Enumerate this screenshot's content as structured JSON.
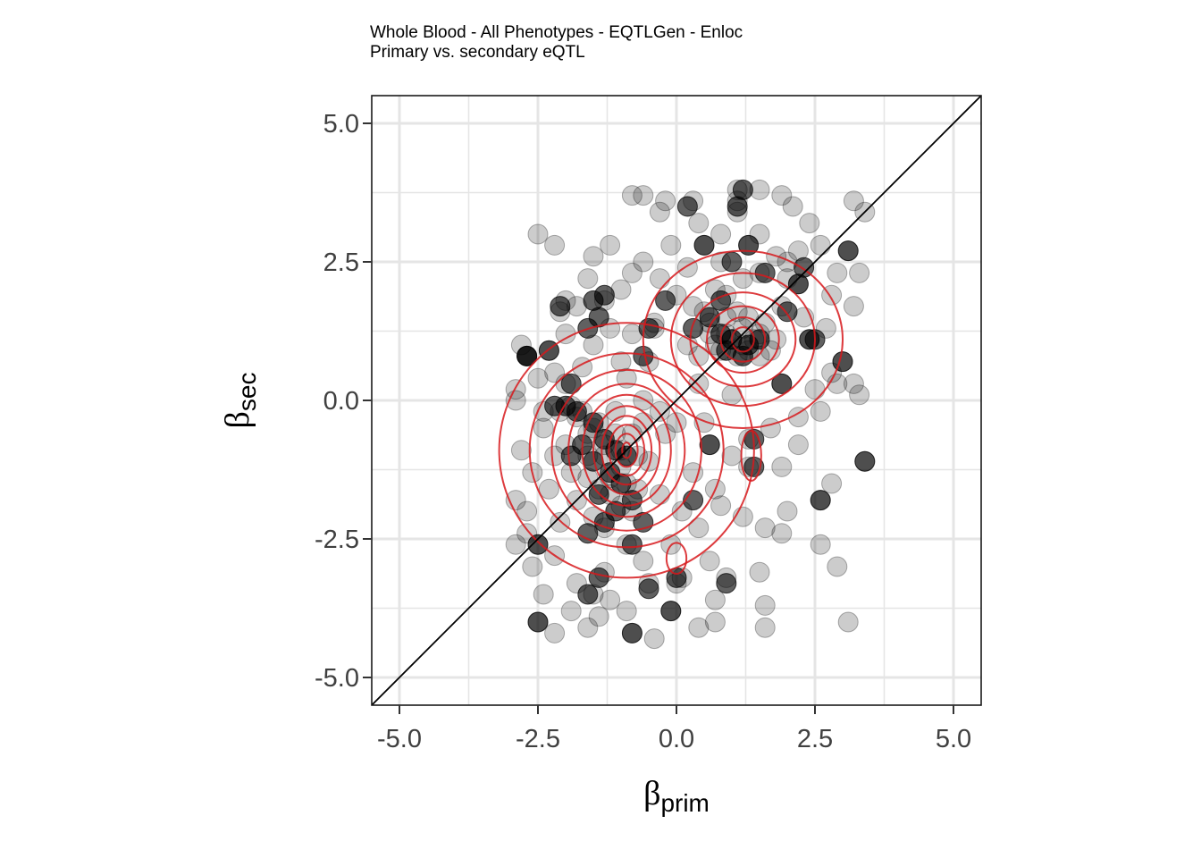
{
  "title": "Whole Blood - All Phenotypes - EQTLGen - Enloc",
  "subtitle": "Primary vs. secondary eQTL",
  "colors": {
    "point": "#000000",
    "contour": "#d7191c",
    "grid": "#e5e5e5",
    "diagonal": "#000000"
  },
  "chart_data": {
    "type": "scatter",
    "title": "Whole Blood - All Phenotypes - EQTLGen - Enloc",
    "subtitle": "Primary vs. secondary eQTL",
    "xlabel": {
      "symbol": "β",
      "sub": "prim"
    },
    "ylabel": {
      "symbol": "β",
      "sub": "sec"
    },
    "xlim": [
      -5.5,
      5.5
    ],
    "ylim": [
      -5.5,
      5.5
    ],
    "xticks": [
      "-5.0",
      "-2.5",
      "0.0",
      "2.5",
      "5.0"
    ],
    "yticks": [
      "-5.0",
      "-2.5",
      "0.0",
      "2.5",
      "5.0"
    ],
    "grid": true,
    "diagonal": "y = x",
    "density_contours": true,
    "points": [
      [
        -2.5,
        3.0
      ],
      [
        -2.2,
        2.8
      ],
      [
        -1.5,
        2.6
      ],
      [
        -1.2,
        2.8
      ],
      [
        -0.8,
        3.7
      ],
      [
        -0.6,
        3.7
      ],
      [
        -0.2,
        3.6
      ],
      [
        0.3,
        3.6
      ],
      [
        1.1,
        3.8
      ],
      [
        1.1,
        3.6
      ],
      [
        1.1,
        3.4
      ],
      [
        1.5,
        3.8
      ],
      [
        1.9,
        3.7
      ],
      [
        2.1,
        3.5
      ],
      [
        3.2,
        3.6
      ],
      [
        3.4,
        3.4
      ],
      [
        3.1,
        2.7
      ],
      [
        3.3,
        2.3
      ],
      [
        2.2,
        2.7
      ],
      [
        2.0,
        2.5
      ],
      [
        0.5,
        2.8
      ],
      [
        1.3,
        2.8
      ],
      [
        -2.0,
        1.8
      ],
      [
        -2.1,
        1.6
      ],
      [
        -1.8,
        1.7
      ],
      [
        -1.3,
        1.8
      ],
      [
        -1.0,
        2.0
      ],
      [
        -0.8,
        2.3
      ],
      [
        -0.3,
        2.2
      ],
      [
        0.2,
        2.4
      ],
      [
        0.8,
        2.5
      ],
      [
        1.5,
        2.3
      ],
      [
        2.2,
        2.1
      ],
      [
        2.8,
        1.9
      ],
      [
        3.2,
        1.7
      ],
      [
        -2.3,
        0.9
      ],
      [
        -2.7,
        0.8
      ],
      [
        -2.2,
        0.5
      ],
      [
        -2.9,
        0.2
      ],
      [
        -1.5,
        1.0
      ],
      [
        -0.5,
        0.7
      ],
      [
        -0.8,
        1.2
      ],
      [
        -0.4,
        1.3
      ],
      [
        0.2,
        1.0
      ],
      [
        0.6,
        1.4
      ],
      [
        0.9,
        1.2
      ],
      [
        1.2,
        1.0
      ],
      [
        1.5,
        0.8
      ],
      [
        1.8,
        1.1
      ],
      [
        2.4,
        1.1
      ],
      [
        3.0,
        0.7
      ],
      [
        3.2,
        0.3
      ],
      [
        2.8,
        0.5
      ],
      [
        2.6,
        -0.2
      ],
      [
        1.9,
        0.3
      ],
      [
        1.0,
        0.1
      ],
      [
        0.4,
        0.3
      ],
      [
        0.5,
        -0.4
      ],
      [
        0.0,
        -0.4
      ],
      [
        -0.6,
        0.0
      ],
      [
        -1.1,
        -0.2
      ],
      [
        -1.5,
        -0.5
      ],
      [
        -1.8,
        -0.3
      ],
      [
        -2.1,
        -0.2
      ],
      [
        -2.4,
        -0.5
      ],
      [
        -2.8,
        -0.9
      ],
      [
        -2.6,
        -1.3
      ],
      [
        -2.2,
        -1.0
      ],
      [
        -1.9,
        -1.3
      ],
      [
        -1.6,
        -1.0
      ],
      [
        -1.3,
        -0.8
      ],
      [
        -1.0,
        -0.9
      ],
      [
        -0.8,
        -0.6
      ],
      [
        -0.5,
        -1.1
      ],
      [
        -0.2,
        -0.6
      ],
      [
        0.6,
        -0.8
      ],
      [
        1.3,
        -0.7
      ],
      [
        1.3,
        -1.2
      ],
      [
        1.9,
        -1.2
      ],
      [
        2.6,
        -1.8
      ],
      [
        2.8,
        -1.5
      ],
      [
        3.4,
        -1.1
      ],
      [
        -2.9,
        -1.8
      ],
      [
        -2.7,
        -2.4
      ],
      [
        -2.5,
        -2.6
      ],
      [
        -2.1,
        -2.2
      ],
      [
        -1.8,
        -1.8
      ],
      [
        -1.5,
        -2.1
      ],
      [
        -1.3,
        -2.3
      ],
      [
        -1.0,
        -1.9
      ],
      [
        -0.7,
        -1.6
      ],
      [
        -0.3,
        -1.7
      ],
      [
        0.1,
        -2.0
      ],
      [
        0.4,
        -2.3
      ],
      [
        0.8,
        -1.9
      ],
      [
        1.2,
        -2.1
      ],
      [
        1.6,
        -2.3
      ],
      [
        1.9,
        -2.4
      ],
      [
        2.6,
        -2.6
      ],
      [
        2.9,
        -3.0
      ],
      [
        -2.6,
        -3.0
      ],
      [
        -2.2,
        -2.8
      ],
      [
        -1.8,
        -3.3
      ],
      [
        -1.5,
        -3.5
      ],
      [
        -1.3,
        -3.1
      ],
      [
        -0.9,
        -2.6
      ],
      [
        -0.5,
        -3.3
      ],
      [
        0.1,
        -3.2
      ],
      [
        0.6,
        -2.9
      ],
      [
        0.9,
        -3.2
      ],
      [
        1.5,
        -3.1
      ],
      [
        0.7,
        -3.6
      ],
      [
        1.6,
        -3.7
      ],
      [
        1.6,
        -4.1
      ],
      [
        -0.8,
        -4.2
      ],
      [
        -0.4,
        -4.3
      ],
      [
        -0.1,
        -3.8
      ],
      [
        0.7,
        -4.0
      ],
      [
        -2.5,
        -4.0
      ],
      [
        -2.2,
        -4.2
      ],
      [
        -1.6,
        -4.1
      ],
      [
        3.1,
        -4.0
      ],
      [
        -1.2,
        -3.6
      ],
      [
        -0.9,
        -3.8
      ],
      [
        -2.0,
        0.3
      ],
      [
        -1.7,
        0.6
      ],
      [
        -1.2,
        1.3
      ],
      [
        -1.0,
        0.7
      ],
      [
        0.0,
        1.9
      ],
      [
        0.3,
        1.7
      ],
      [
        0.5,
        1.6
      ],
      [
        0.9,
        1.9
      ],
      [
        1.3,
        1.5
      ],
      [
        1.6,
        1.4
      ],
      [
        1.9,
        1.7
      ],
      [
        2.3,
        1.5
      ],
      [
        2.7,
        1.3
      ],
      [
        2.9,
        2.3
      ],
      [
        0.3,
        -1.3
      ],
      [
        0.7,
        -1.6
      ],
      [
        1.0,
        -1.0
      ],
      [
        -2.9,
        0.0
      ],
      [
        -2.4,
        -0.2
      ],
      [
        -2.7,
        -2.0
      ],
      [
        -2.0,
        -0.8
      ],
      [
        -1.9,
        -0.1
      ],
      [
        -1.7,
        -0.2
      ],
      [
        -1.6,
        -0.6
      ],
      [
        -1.4,
        -0.4
      ],
      [
        -1.3,
        -1.0
      ],
      [
        -1.2,
        -1.4
      ],
      [
        -1.1,
        -0.6
      ],
      [
        -1.0,
        -1.2
      ],
      [
        -0.9,
        -1.5
      ],
      [
        -0.7,
        -1.0
      ],
      [
        -0.6,
        -0.4
      ],
      [
        -1.4,
        -1.6
      ],
      [
        -1.6,
        -1.4
      ],
      [
        -1.2,
        -1.7
      ],
      [
        -0.8,
        -2.0
      ],
      [
        0.7,
        1.0
      ],
      [
        0.8,
        0.9
      ],
      [
        1.0,
        1.1
      ],
      [
        1.1,
        0.8
      ],
      [
        1.2,
        1.3
      ],
      [
        1.4,
        1.1
      ],
      [
        1.5,
        1.2
      ],
      [
        1.3,
        0.9
      ],
      [
        0.9,
        1.5
      ],
      [
        0.6,
        1.2
      ],
      [
        1.7,
        0.9
      ],
      [
        1.1,
        1.6
      ],
      [
        0.4,
        0.8
      ],
      [
        -0.4,
        1.4
      ],
      [
        2.0,
        2.2
      ],
      [
        -0.3,
        3.4
      ],
      [
        0.4,
        3.2
      ],
      [
        0.8,
        3.0
      ],
      [
        1.5,
        3.0
      ],
      [
        2.4,
        3.2
      ],
      [
        2.6,
        2.8
      ],
      [
        1.8,
        2.6
      ],
      [
        1.2,
        2.2
      ],
      [
        0.7,
        2.0
      ],
      [
        -0.1,
        2.8
      ],
      [
        -0.6,
        2.5
      ],
      [
        -1.6,
        2.2
      ],
      [
        -2.0,
        1.2
      ],
      [
        -2.8,
        1.0
      ],
      [
        -2.5,
        0.4
      ],
      [
        -0.9,
        0.4
      ],
      [
        -0.3,
        -0.2
      ],
      [
        2.2,
        -0.3
      ],
      [
        2.5,
        0.2
      ],
      [
        2.9,
        0.3
      ],
      [
        3.3,
        0.1
      ],
      [
        2.2,
        -0.8
      ],
      [
        1.7,
        -0.5
      ],
      [
        2.0,
        -2.0
      ],
      [
        -0.1,
        -2.6
      ],
      [
        -0.6,
        -2.9
      ],
      [
        -2.4,
        -3.5
      ],
      [
        -1.9,
        -3.8
      ],
      [
        -1.4,
        -3.9
      ],
      [
        0.4,
        -4.1
      ],
      [
        -2.9,
        -2.6
      ],
      [
        0.0,
        -3.3
      ],
      [
        -2.3,
        -1.6
      ]
    ],
    "dense_points": [
      [
        1.2,
        3.8
      ],
      [
        1.1,
        3.5
      ],
      [
        0.2,
        3.5
      ],
      [
        0.5,
        2.8
      ],
      [
        3.1,
        2.7
      ],
      [
        2.3,
        2.4
      ],
      [
        2.2,
        2.1
      ],
      [
        1.6,
        2.3
      ],
      [
        1.0,
        2.5
      ],
      [
        -2.1,
        1.7
      ],
      [
        -1.5,
        1.8
      ],
      [
        -1.3,
        1.9
      ],
      [
        -2.7,
        0.8
      ],
      [
        -2.3,
        0.9
      ],
      [
        -1.6,
        1.3
      ],
      [
        -1.4,
        1.5
      ],
      [
        -0.5,
        1.3
      ],
      [
        -0.2,
        1.8
      ],
      [
        0.3,
        1.3
      ],
      [
        0.6,
        1.5
      ],
      [
        0.8,
        1.2
      ],
      [
        1.0,
        1.1
      ],
      [
        1.3,
        1.0
      ],
      [
        1.5,
        1.1
      ],
      [
        1.2,
        0.8
      ],
      [
        0.9,
        0.9
      ],
      [
        2.4,
        1.1
      ],
      [
        3.0,
        0.7
      ],
      [
        1.9,
        0.3
      ],
      [
        -2.0,
        -0.1
      ],
      [
        -1.8,
        -0.2
      ],
      [
        -1.5,
        -0.4
      ],
      [
        -1.3,
        -0.7
      ],
      [
        -1.1,
        -0.9
      ],
      [
        -0.9,
        -1.0
      ],
      [
        -1.7,
        -0.8
      ],
      [
        -1.5,
        -1.1
      ],
      [
        -1.2,
        -1.3
      ],
      [
        -1.0,
        -1.5
      ],
      [
        -1.4,
        -1.7
      ],
      [
        -1.1,
        -2.0
      ],
      [
        -1.3,
        -2.2
      ],
      [
        -1.6,
        -2.4
      ],
      [
        -0.8,
        -1.8
      ],
      [
        -0.6,
        -2.2
      ],
      [
        -2.2,
        -0.1
      ],
      [
        -1.9,
        -1.0
      ],
      [
        0.6,
        -0.8
      ],
      [
        1.4,
        -0.7
      ],
      [
        1.4,
        -1.2
      ],
      [
        2.6,
        -1.8
      ],
      [
        3.4,
        -1.1
      ],
      [
        -2.5,
        -2.6
      ],
      [
        -0.8,
        -2.6
      ],
      [
        -1.4,
        -3.2
      ],
      [
        -1.6,
        -3.5
      ],
      [
        0.0,
        -3.2
      ],
      [
        -0.5,
        -3.4
      ],
      [
        0.9,
        -3.3
      ],
      [
        -0.1,
        -3.8
      ],
      [
        -0.8,
        -4.2
      ],
      [
        -2.5,
        -4.0
      ],
      [
        -2.7,
        0.8
      ],
      [
        1.3,
        2.8
      ],
      [
        0.8,
        1.8
      ],
      [
        -0.6,
        0.8
      ],
      [
        0.3,
        -1.8
      ],
      [
        2.0,
        1.6
      ],
      [
        2.5,
        1.1
      ],
      [
        -1.9,
        0.3
      ]
    ],
    "contours": [
      {
        "cx": -0.9,
        "cy": -0.9,
        "levels": [
          [
            2.3,
            2.3
          ],
          [
            1.75,
            1.75
          ],
          [
            1.35,
            1.45
          ],
          [
            1.05,
            1.2
          ],
          [
            0.8,
            1.0
          ],
          [
            0.6,
            0.8
          ],
          [
            0.45,
            0.62
          ],
          [
            0.32,
            0.46
          ],
          [
            0.2,
            0.3
          ],
          [
            0.08,
            0.14
          ]
        ]
      },
      {
        "cx": 1.2,
        "cy": 1.1,
        "levels": [
          [
            1.8,
            1.6
          ],
          [
            1.3,
            1.2
          ],
          [
            0.95,
            0.85
          ],
          [
            0.65,
            0.6
          ],
          [
            0.4,
            0.4
          ],
          [
            0.2,
            0.22
          ]
        ]
      },
      {
        "cx": 1.35,
        "cy": -1.0,
        "levels": [
          [
            0.18,
            0.45
          ]
        ]
      },
      {
        "cx": 0.0,
        "cy": -2.85,
        "levels": [
          [
            0.18,
            0.28
          ]
        ]
      }
    ]
  }
}
